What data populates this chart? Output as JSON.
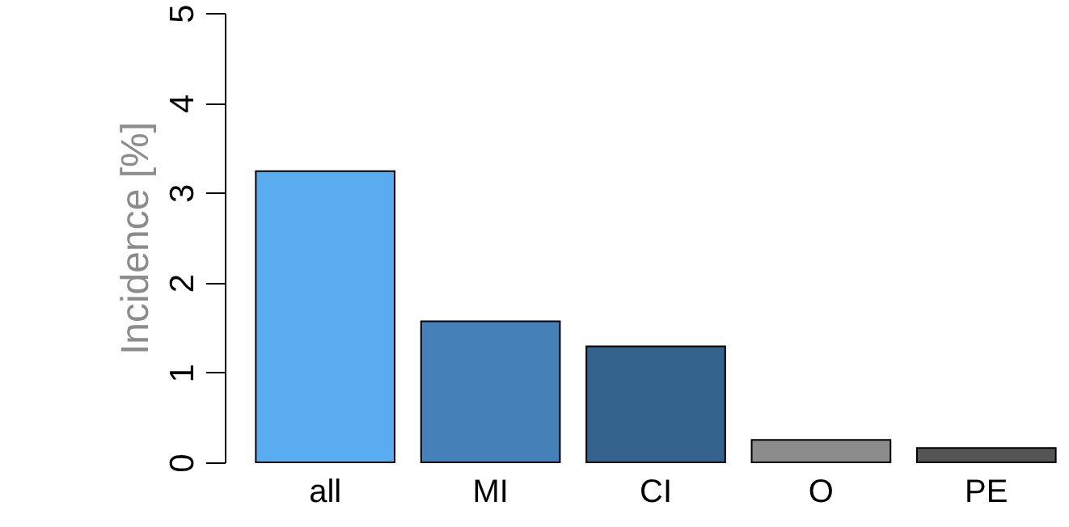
{
  "chart_data": {
    "type": "bar",
    "ylabel": "Incidence [%]",
    "categories": [
      "all",
      "MI",
      "CI",
      "O",
      "PE"
    ],
    "values": [
      3.24,
      1.57,
      1.29,
      0.25,
      0.16
    ],
    "colors": [
      "#5aacf0",
      "#4680b8",
      "#33628c",
      "#8c8c8c",
      "#555555"
    ],
    "ylim": [
      0,
      5
    ],
    "yticks": [
      0,
      1,
      2,
      3,
      4,
      5
    ]
  }
}
